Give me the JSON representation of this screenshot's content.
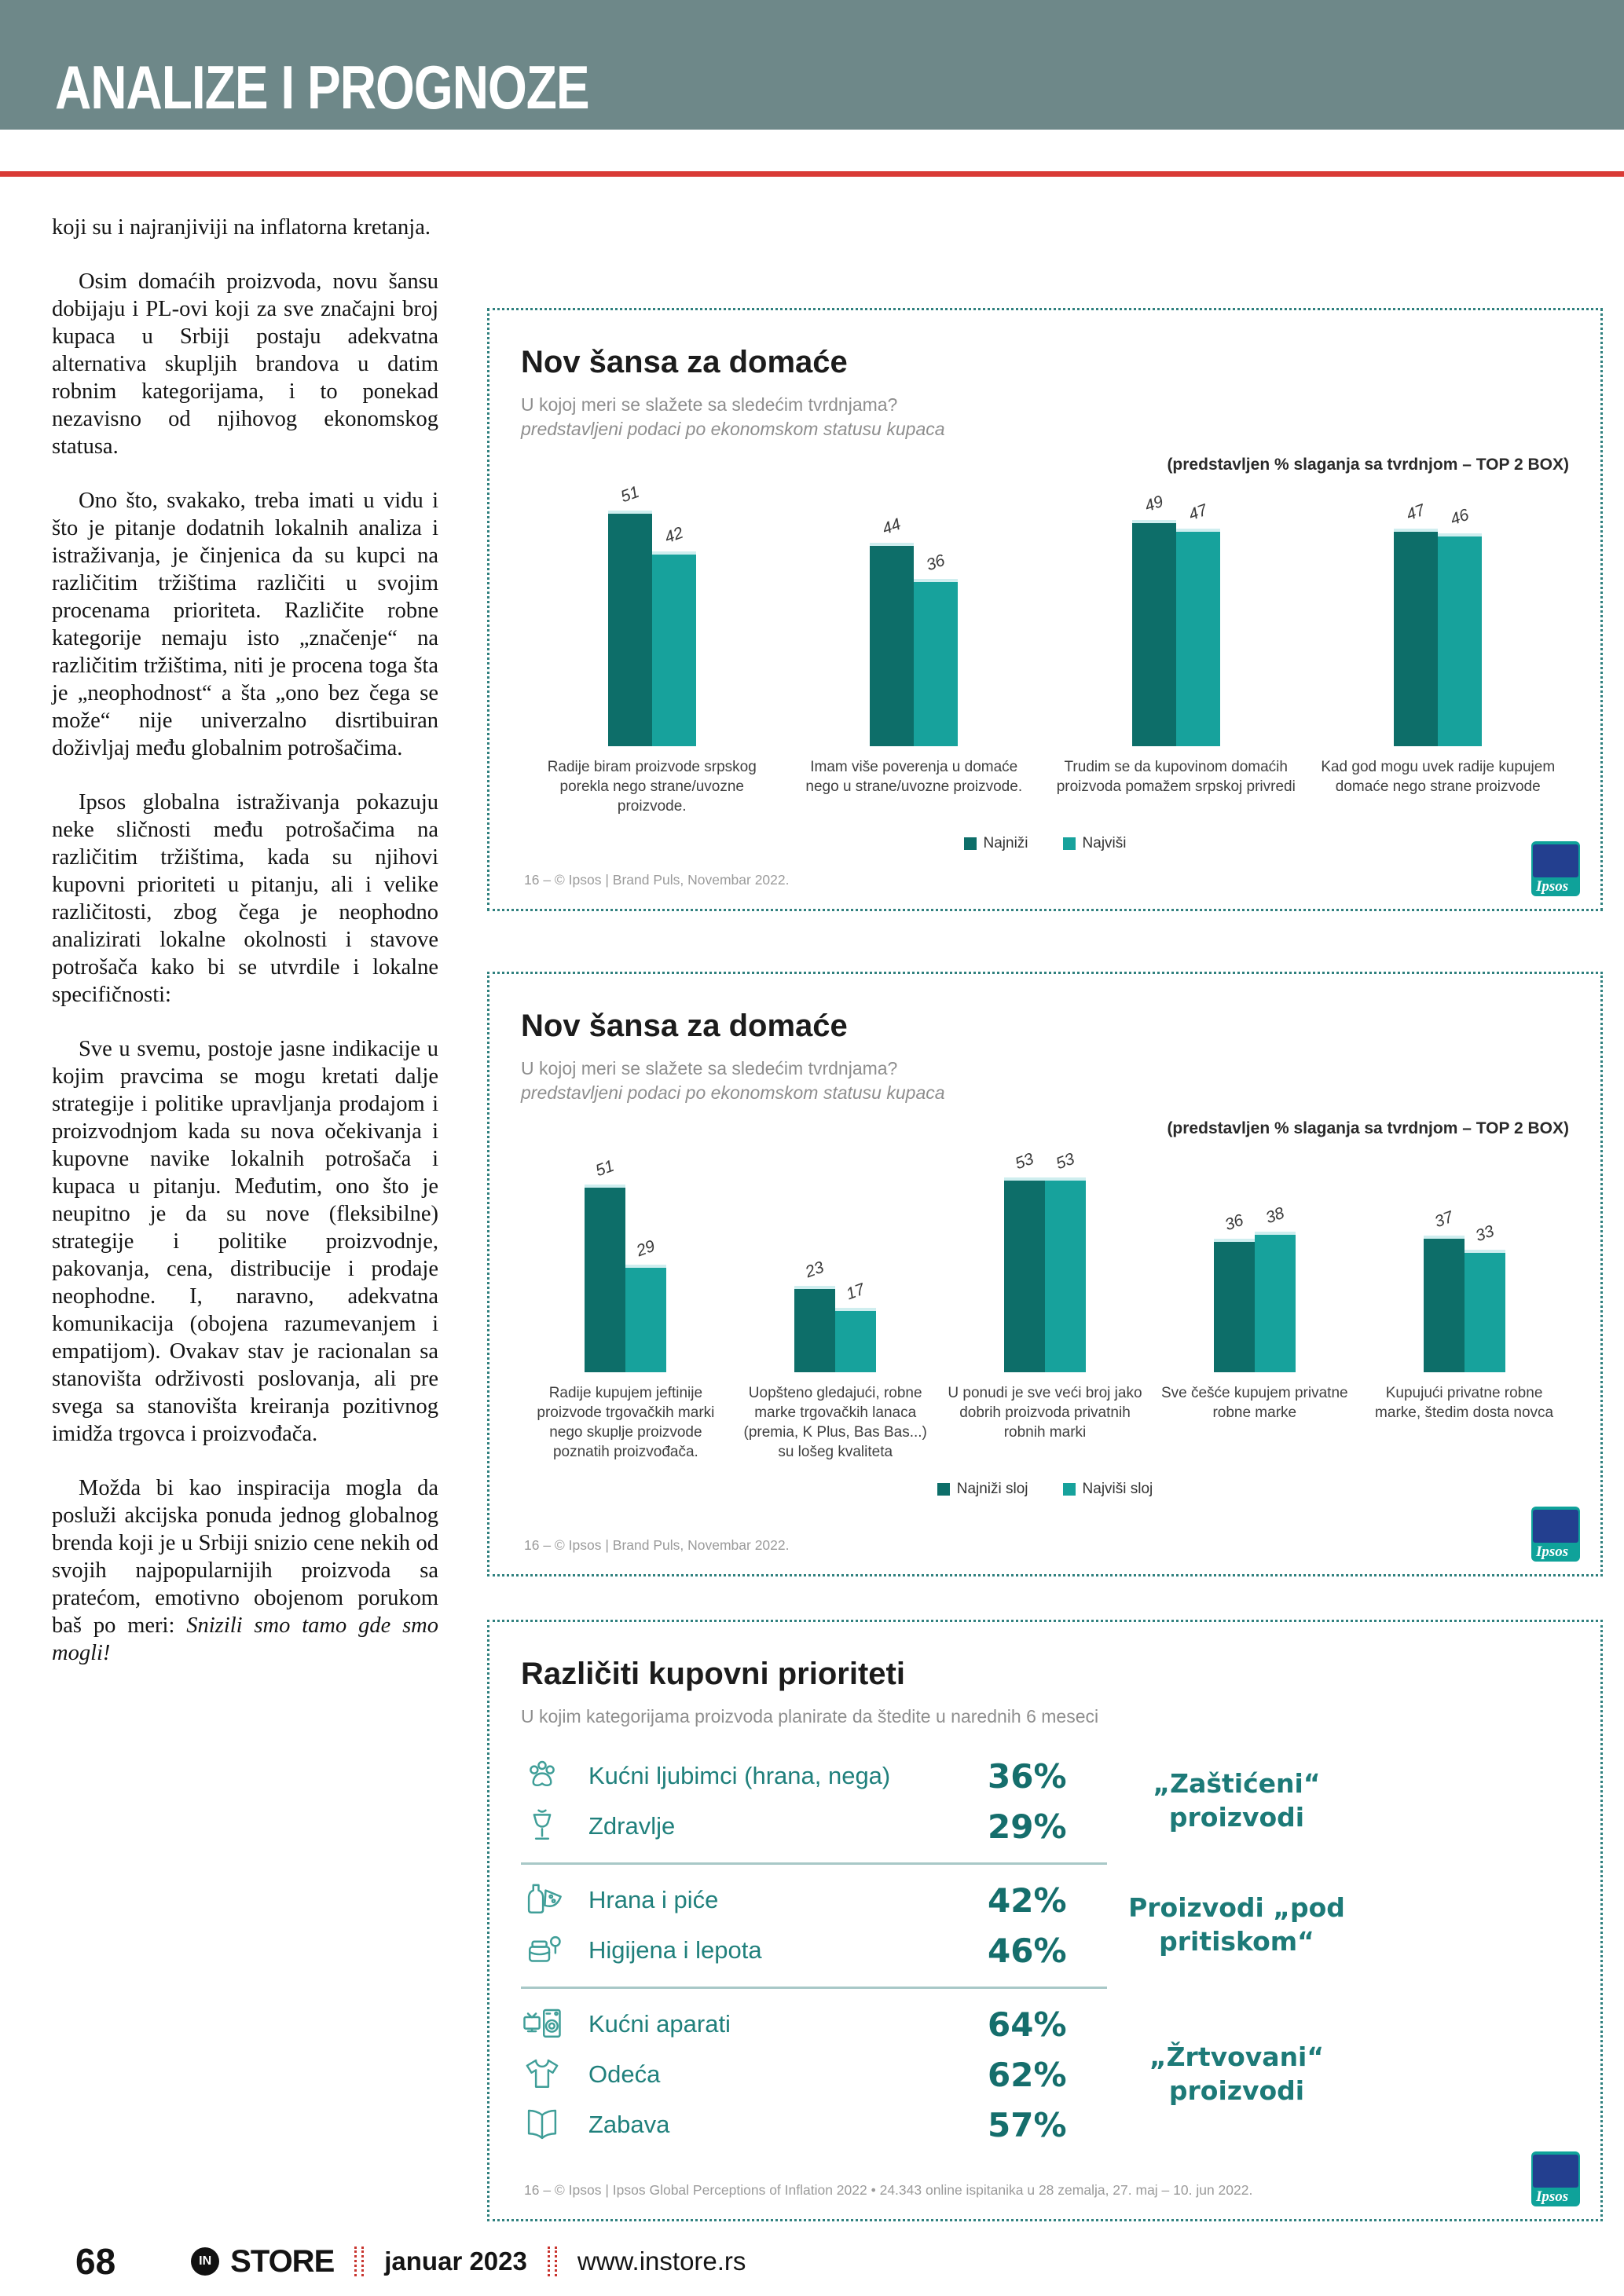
{
  "page": {
    "header": {
      "title": "ANALIZE I PROGNOZE",
      "band_color": "#6e8889"
    },
    "rule_color": "#d93a35",
    "footer": {
      "page_number": "68",
      "logo_in": "IN",
      "logo_store": "STORE",
      "issue_date": "januar 2023",
      "website": "www.instore.rs"
    }
  },
  "article": {
    "paragraphs": [
      "koji su i najranjiviji na inflatorna kretanja.",
      "Osim domaćih proizvoda, novu šansu dobijaju i PL-ovi koji za sve značajni broj kupaca u Srbiji postaju adekvatna alternativa skupljih brandova u datim robnim kategorijama, i to ponekad nezavisno od njihovog ekonomskog statusa.",
      "Ono što, svakako, treba imati u vidu i što je pitanje dodatnih lokalnih analiza i istraživanja, je činjenica da su kupci na različitim tržištima različiti u svojim procenama prioriteta. Različite robne kategorije nemaju isto „značenje“ na različitim tržištima, niti je procena toga šta je „neophodnost“ a šta „ono bez čega se može“ nije univerzalno disrtibuiran doživljaj među globalnim potrošačima.",
      "Ipsos globalna istraživanja pokazuju neke sličnosti među potrošačima na različitim tržištima, kada su njihovi kupovni prioriteti u pitanju, ali i velike različitosti, zbog čega je neophodno analizirati lokalne okolnosti i stavove potrošača kako bi se utvrdile i lokalne specifičnosti:",
      "Sve u svemu, postoje jasne indikacije u kojim pravcima se mogu kretati dalje strategije i politike upravljanja prodajom i proizvodnjom kada su nova očekivanja i kupovne navike lokalnih potrošača i kupaca u pitanju. Međutim, ono što je neupitno je da su nove (fleksibilne) strategije i politike proizvodnje, pakovanja, cena, distribucije i prodaje neophodne. I, naravno, adekvatna komunikacija (obojena razumevanjem i empatijom). Ovakav stav je racionalan sa stanovišta održivosti poslovanja, ali pre svega sa stanovišta kreiranja pozitivnog imidža trgovca i proizvođača.",
      "Možda bi kao inspiracija mogla da posluži akcijska ponuda jednog globalnog brenda koji je u Srbiji snizio cene nekih od svojih najpopularnijih proizvoda sa pratećom, emotivno obojenom porukom baš po meri:"
    ],
    "closing_italic": "Snizili smo tamo gde smo mogli!"
  },
  "charts_meta": {
    "bar_dark_color": "#0d6e69",
    "bar_light_color": "#17a29c",
    "border_color": "#2f807e",
    "logo_text": "Ipsos"
  },
  "chart_data": [
    {
      "type": "bar",
      "title": "Nov šansa za domaće",
      "subtitle": "U kojoj meri se slažete sa sledećim tvrdnjama?",
      "subtitle_italic": "predstavljeni podaci po ekonomskom statusu kupaca",
      "note": "(predstavljen  % slaganja sa tvrdnjom – TOP 2 BOX)",
      "categories": [
        "Radije biram proizvode srpskog porekla nego strane/uvozne proizvode.",
        "Imam više poverenja u domaće nego u strane/uvozne proizvode.",
        "Trudim se da kupovinom domaćih proizvoda pomažem srpskoj privredi",
        "Kad god mogu uvek radije kupujem domaće nego strane proizvode"
      ],
      "series": [
        {
          "name": "Najniži",
          "color": "#0d6e69",
          "values": [
            51,
            44,
            49,
            47
          ]
        },
        {
          "name": "Najviši",
          "color": "#17a29c",
          "values": [
            42,
            36,
            47,
            46
          ]
        }
      ],
      "ylim": [
        0,
        60
      ],
      "legend_position": "bottom",
      "source_note": "16 –   © Ipsos | Brand Puls, Novembar 2022."
    },
    {
      "type": "bar",
      "title": "Nov šansa za domaće",
      "subtitle": "U kojoj meri se slažete sa sledećim tvrdnjama?",
      "subtitle_italic": "predstavljeni podaci po ekonomskom statusu kupaca",
      "note": "(predstavljen  % slaganja sa tvrdnjom – TOP 2 BOX)",
      "categories": [
        "Radije kupujem jeftinije proizvode trgovačkih marki nego skuplje proizvode poznatih proizvođača.",
        "Uopšteno gledajući, robne marke trgovačkih lanaca (premia, K Plus, Bas Bas...) su lošeg kvaliteta",
        "U ponudi je sve veći broj jako dobrih proizvoda privatnih robnih marki",
        "Sve češće kupujem privatne robne marke",
        "Kupujući privatne robne marke, štedim dosta novca"
      ],
      "series": [
        {
          "name": "Najniži sloj",
          "color": "#0d6e69",
          "values": [
            51,
            23,
            53,
            36,
            37
          ]
        },
        {
          "name": "Najviši sloj",
          "color": "#17a29c",
          "values": [
            29,
            17,
            53,
            38,
            33
          ]
        }
      ],
      "ylim": [
        0,
        60
      ],
      "legend_position": "bottom",
      "source_note": "16 –   © Ipsos | Brand Puls, Novembar 2022."
    },
    {
      "type": "table",
      "title": "Različiti kupovni prioriteti",
      "subtitle": "U kojim kategorijama proizvoda planirate da štedite u narednih 6 meseci",
      "rows": [
        {
          "icon": "pet-icon",
          "label": "Kućni ljubimci (hrana, nega)",
          "value": "36%",
          "group": 0
        },
        {
          "icon": "health-icon",
          "label": "Zdravlje",
          "value": "29%",
          "group": 0
        },
        {
          "icon": "food-drink-icon",
          "label": "Hrana i piće",
          "value": "42%",
          "group": 1
        },
        {
          "icon": "hygiene-icon",
          "label": "Higijena i lepota",
          "value": "46%",
          "group": 1
        },
        {
          "icon": "appliances-icon",
          "label": "Kućni aparati",
          "value": "64%",
          "group": 2
        },
        {
          "icon": "clothes-icon",
          "label": "Odeća",
          "value": "62%",
          "group": 2
        },
        {
          "icon": "entertainment-icon",
          "label": "Zabava",
          "value": "57%",
          "group": 2
        }
      ],
      "group_labels": [
        [
          "„Zaštićeni“",
          "proizvodi"
        ],
        [
          "Proizvodi „pod",
          "pritiskom“"
        ],
        [
          "„Žrtvovani“",
          "proizvodi"
        ]
      ],
      "source_note": "16 –   © Ipsos | Ipsos Global Perceptions of Inflation 2022 • 24.343 online ispitanika u 28 zemalja, 27. maj – 10. jun 2022."
    }
  ]
}
